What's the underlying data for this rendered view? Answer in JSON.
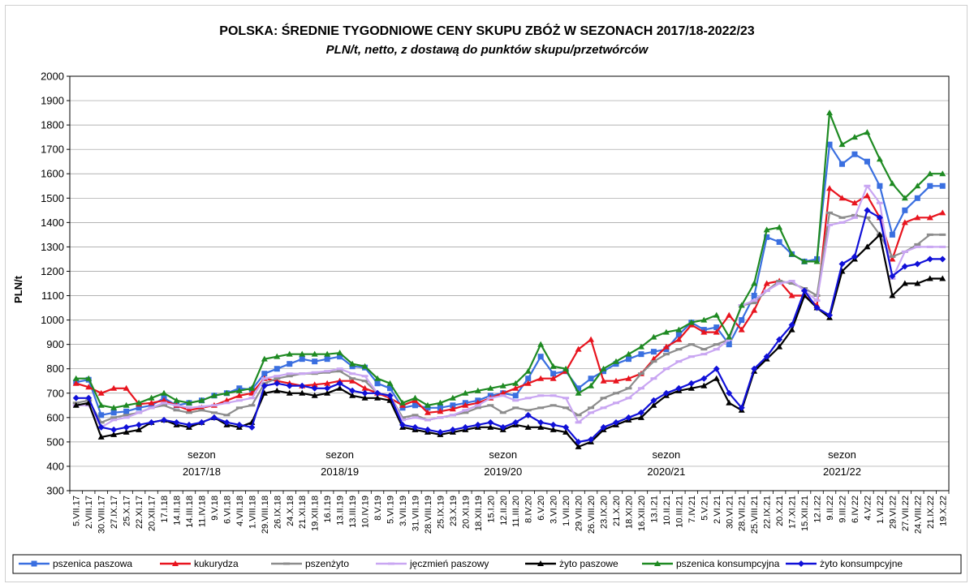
{
  "chart_data": {
    "type": "line",
    "title": "POLSKA: ŚREDNIE TYGODNIOWE CENY SKUPU ZBÓŻ W SEZONACH 2017/18-2022/23",
    "subtitle": "PLN/t, netto, z dostawą do punktów skupu/przetwórców",
    "ylabel": "PLN/t",
    "ylim": [
      300,
      2000
    ],
    "yticks": [
      300,
      400,
      500,
      600,
      700,
      800,
      900,
      1000,
      1100,
      1200,
      1300,
      1400,
      1500,
      1600,
      1700,
      1800,
      1900,
      2000
    ],
    "grid": true,
    "legend_position": "bottom",
    "x_tick_labels": [
      "5.VII.17",
      "2.VIII.17",
      "30.VIII.17",
      "27.IX.17",
      "25.X.17",
      "22.XI.17",
      "20.XII.17",
      "17.I.18",
      "14.II.18",
      "14.III.18",
      "11.IV.18",
      "9.V.18",
      "6.VI.18",
      "4.VII.18",
      "1.VIII.18",
      "29.VIII.18",
      "26.IX.18",
      "24.X.18",
      "21.XI.18",
      "19.XII.18",
      "16.I.19",
      "13.II.19",
      "13.III.19",
      "10.IV.19",
      "8.V.19",
      "5.VI.19",
      "3.VII.19",
      "31.VII.19",
      "28.VIII.19",
      "25.IX.19",
      "23.X.19",
      "20.XI.19",
      "18.XII.19",
      "15.I.20",
      "12.II.20",
      "11.III.20",
      "8.IV.20",
      "6.V.20",
      "3.VI.20",
      "1.VII.20",
      "29.VII.20",
      "26.VIII.20",
      "23.IX.20",
      "21.X.20",
      "18.XI.20",
      "16.XII.20",
      "13.I.21",
      "10.II.21",
      "10.III.21",
      "7.IV.21",
      "5.V.21",
      "2.VI.21",
      "30.VI.21",
      "28.VII.21",
      "25.VIII.21",
      "22.IX.21",
      "20.X.21",
      "17.XI.21",
      "15.XII.21",
      "12.I.22",
      "9.II.22",
      "9.III.22",
      "6.IV.22",
      "4.V.22",
      "1.VI.22",
      "29.VI.22",
      "27.VII.22",
      "24.VIII.22",
      "21.IX.22",
      "19.X.22"
    ],
    "x_tick_labels_visible": [
      "5.VII.17",
      "2.VIII.17",
      "30.VIII.17",
      "27.IX.17",
      "25.X.17",
      "22.XI.17",
      "20.XII.17",
      "17.I.18",
      "14.II.18",
      "14.III.18",
      "11.IV.18",
      "9.V.18",
      "6.VI.18",
      "4.VII.18",
      "1.VIII.18",
      "29.VIII.18",
      "26.IX.18",
      "24.X.18",
      "21.XI.18",
      "19.XII.18",
      "16.I.19",
      "13.II.19",
      "13.III.19",
      "10.IV.19",
      "8.V.19",
      "5.VI.19",
      "3.VII.19",
      "31.VII.19",
      "28.VIII.19",
      "25.IX.19",
      "23.X.19",
      "20.XI.19",
      "18.XII.19",
      "15.I.20",
      "12.II.20",
      "11.III.20",
      "8.IV.20",
      "6.V.20",
      "3.VI.20",
      "1.VII.20",
      "29.VII.20",
      "26.VIII.20",
      "23.IX.20",
      "21.X.20",
      "18.XI.20",
      "16.XII.20",
      "13.I.21",
      "10.II.21",
      "10.III.21",
      "7.IV.21",
      "5.V.21",
      "2.VI.21",
      "30.VI.21",
      "28.VII.21",
      "25.VIII.21",
      "22.IX.21",
      "20.X.21",
      "17.XI.21",
      "15.XII.21",
      "12.I.22",
      "9.II.22",
      "9.III.22",
      "6.IV.22",
      "4.V.22",
      "1.VI.22",
      "29.VI.22",
      "27.VII.22",
      "24.VIII.22",
      "21.IX.22",
      "19.X.22"
    ],
    "season_dividers": [
      "11.VII.18",
      "10.VII.19",
      "8.VII.20",
      "14.VII.21"
    ],
    "season_labels": [
      {
        "line1": "sezon",
        "line2": "2017/18",
        "at": "11.IV.18"
      },
      {
        "line1": "sezon",
        "line2": "2018/19",
        "at": "13.II.19"
      },
      {
        "line1": "sezon",
        "line2": "2019/20",
        "at": "12.II.20"
      },
      {
        "line1": "sezon",
        "line2": "2020/21",
        "at": "10.II.21"
      },
      {
        "line1": "sezon",
        "line2": "2021/22",
        "at": "9.III.22"
      }
    ],
    "series": [
      {
        "name": "pszenica paszowa",
        "color": "#3A6FE0",
        "marker": "square",
        "values": [
          745,
          755,
          610,
          620,
          625,
          640,
          650,
          680,
          650,
          660,
          670,
          690,
          700,
          720,
          715,
          780,
          800,
          820,
          840,
          830,
          840,
          850,
          810,
          805,
          740,
          720,
          640,
          650,
          640,
          640,
          650,
          660,
          670,
          690,
          700,
          690,
          760,
          850,
          780,
          790,
          720,
          760,
          790,
          820,
          840,
          860,
          870,
          880,
          940,
          990,
          960,
          970,
          900,
          1000,
          1100,
          1340,
          1320,
          1270,
          1240,
          1250,
          1720,
          1640,
          1680,
          1650,
          1550,
          1350,
          1450,
          1500,
          1550,
          1550
        ]
      },
      {
        "name": "kukurydza",
        "color": "#E8141E",
        "marker": "triangle",
        "values": [
          740,
          725,
          700,
          720,
          720,
          655,
          660,
          670,
          650,
          630,
          640,
          650,
          670,
          690,
          700,
          760,
          750,
          740,
          730,
          735,
          740,
          750,
          750,
          720,
          700,
          680,
          650,
          670,
          620,
          625,
          635,
          650,
          660,
          680,
          700,
          720,
          740,
          760,
          760,
          790,
          880,
          920,
          750,
          750,
          760,
          780,
          840,
          890,
          920,
          980,
          950,
          950,
          1020,
          960,
          1040,
          1150,
          1160,
          1100,
          1100,
          1060,
          1540,
          1500,
          1480,
          1510,
          1420,
          1250,
          1400,
          1420,
          1420,
          1440
        ]
      },
      {
        "name": "pszenżyto",
        "color": "#8C8C8C",
        "marker": "dash",
        "values": [
          660,
          670,
          580,
          600,
          610,
          620,
          640,
          650,
          630,
          620,
          630,
          620,
          610,
          640,
          650,
          740,
          760,
          770,
          780,
          780,
          785,
          790,
          760,
          750,
          700,
          690,
          600,
          610,
          590,
          600,
          610,
          620,
          640,
          650,
          620,
          640,
          630,
          640,
          650,
          640,
          610,
          640,
          680,
          700,
          720,
          780,
          830,
          860,
          880,
          900,
          880,
          900,
          920,
          1060,
          1070,
          1120,
          1160,
          1150,
          1130,
          1100,
          1440,
          1420,
          1430,
          1420,
          1350,
          1260,
          1280,
          1310,
          1350,
          1350
        ]
      },
      {
        "name": "jęczmień paszowy",
        "color": "#C9A6F2",
        "marker": "dash",
        "values": [
          650,
          650,
          560,
          590,
          600,
          620,
          640,
          660,
          650,
          640,
          645,
          650,
          660,
          670,
          680,
          760,
          770,
          780,
          780,
          785,
          790,
          800,
          780,
          770,
          700,
          690,
          590,
          600,
          590,
          600,
          610,
          630,
          650,
          680,
          690,
          670,
          680,
          690,
          690,
          680,
          580,
          620,
          640,
          660,
          680,
          720,
          760,
          800,
          830,
          850,
          860,
          880,
          920,
          1060,
          1080,
          1120,
          1150,
          1160,
          1120,
          1080,
          1390,
          1400,
          1420,
          1550,
          1480,
          1170,
          1280,
          1300,
          1300,
          1300
        ]
      },
      {
        "name": "żyto paszowe",
        "color": "#000000",
        "marker": "triangle",
        "values": [
          650,
          660,
          520,
          530,
          540,
          550,
          580,
          590,
          570,
          560,
          580,
          600,
          570,
          560,
          580,
          700,
          710,
          700,
          700,
          690,
          700,
          720,
          690,
          680,
          680,
          670,
          560,
          550,
          540,
          530,
          540,
          550,
          560,
          560,
          550,
          570,
          560,
          560,
          550,
          540,
          480,
          500,
          550,
          570,
          590,
          600,
          650,
          690,
          710,
          720,
          730,
          760,
          660,
          630,
          790,
          840,
          890,
          960,
          1100,
          1050,
          1010,
          1200,
          1250,
          1300,
          1350,
          1100,
          1150,
          1150,
          1170,
          1170
        ]
      },
      {
        "name": "pszenica konsumpcyjna",
        "color": "#1E8A22",
        "marker": "triangle",
        "values": [
          760,
          760,
          650,
          640,
          650,
          660,
          680,
          700,
          670,
          660,
          670,
          690,
          700,
          710,
          720,
          840,
          850,
          860,
          860,
          860,
          860,
          865,
          820,
          810,
          760,
          740,
          660,
          680,
          650,
          660,
          680,
          700,
          710,
          720,
          730,
          740,
          790,
          900,
          810,
          800,
          700,
          730,
          800,
          830,
          860,
          890,
          930,
          950,
          960,
          990,
          1000,
          1020,
          930,
          1060,
          1150,
          1370,
          1380,
          1270,
          1240,
          1240,
          1850,
          1720,
          1750,
          1770,
          1660,
          1560,
          1500,
          1550,
          1600,
          1600
        ]
      },
      {
        "name": "żyto konsumpcyjne",
        "color": "#1010D8",
        "marker": "diamond",
        "values": [
          680,
          680,
          560,
          550,
          560,
          570,
          580,
          590,
          580,
          570,
          580,
          600,
          580,
          570,
          560,
          730,
          740,
          730,
          730,
          720,
          720,
          740,
          710,
          700,
          700,
          690,
          570,
          560,
          550,
          540,
          550,
          560,
          570,
          580,
          560,
          580,
          610,
          580,
          570,
          560,
          500,
          510,
          560,
          580,
          600,
          620,
          670,
          700,
          720,
          740,
          760,
          800,
          700,
          640,
          800,
          850,
          920,
          980,
          1120,
          1050,
          1020,
          1230,
          1260,
          1450,
          1420,
          1180,
          1220,
          1230,
          1250,
          1250
        ]
      }
    ]
  }
}
